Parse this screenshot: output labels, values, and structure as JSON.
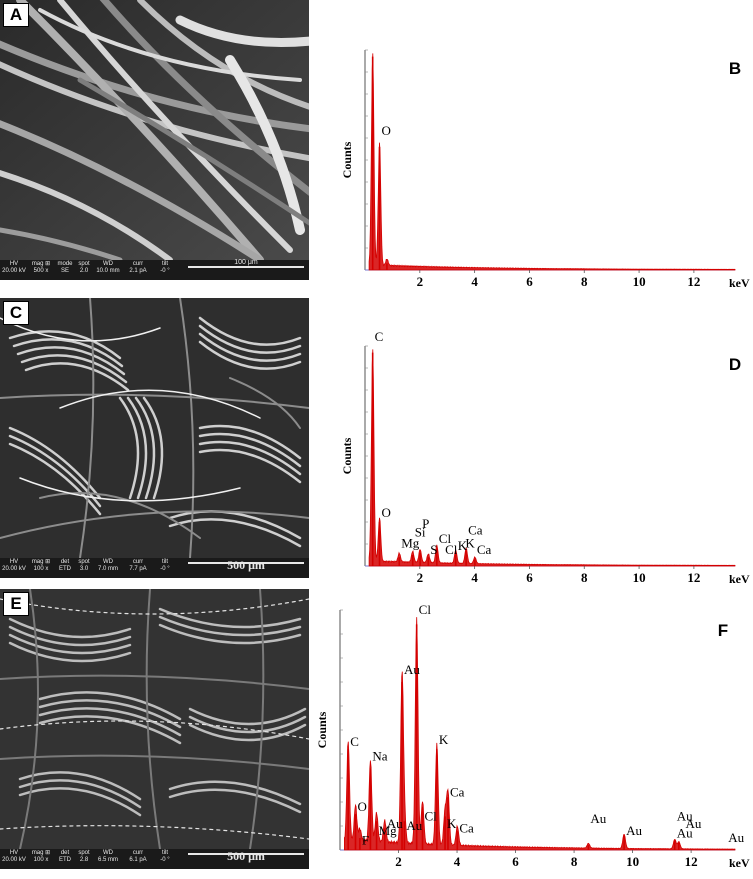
{
  "panels": {
    "A": {
      "label": "A"
    },
    "B": {
      "label": "B"
    },
    "C": {
      "label": "C"
    },
    "D": {
      "label": "D"
    },
    "E": {
      "label": "E"
    },
    "F": {
      "label": "F"
    }
  },
  "sem_bars": [
    {
      "id": "A",
      "scale": "100 μm",
      "cells": [
        [
          "HV",
          "20.00 kV"
        ],
        [
          "mag ⊞",
          "500 x"
        ],
        [
          "mode",
          "SE"
        ],
        [
          "spot",
          "2.0"
        ],
        [
          "WD",
          "10.0 mm"
        ],
        [
          "curr",
          "2.1 pA"
        ],
        [
          "tilt",
          "-0 °"
        ]
      ]
    },
    {
      "id": "C",
      "scale": "500 μm",
      "cells": [
        [
          "HV",
          "20.00 kV"
        ],
        [
          "mag ⊞",
          "100 x"
        ],
        [
          "det",
          "ETD"
        ],
        [
          "spot",
          "3.0"
        ],
        [
          "WD",
          "7.0 mm"
        ],
        [
          "curr",
          "7.7 pA"
        ],
        [
          "tilt",
          "-0 °"
        ]
      ]
    },
    {
      "id": "E",
      "scale": "500 μm",
      "cells": [
        [
          "HV",
          "20.00 kV"
        ],
        [
          "mag ⊞",
          "100 x"
        ],
        [
          "det",
          "ETD"
        ],
        [
          "spot",
          "2.8"
        ],
        [
          "WD",
          "6.5 mm"
        ],
        [
          "curr",
          "6.1 pA"
        ],
        [
          "tilt",
          "-0 °"
        ]
      ]
    }
  ],
  "chart_data": [
    {
      "panel": "B",
      "type": "line",
      "title": "",
      "xlabel": "keV",
      "ylabel": "Counts",
      "xlim": [
        0,
        13.5
      ],
      "ylim": [
        0,
        100
      ],
      "xticks": [
        2,
        4,
        6,
        8,
        10,
        12
      ],
      "peaks": [
        {
          "x": 0.28,
          "y": 97
        },
        {
          "x": 0.53,
          "y": 56
        },
        {
          "x": 0.8,
          "y": 3
        }
      ],
      "baseline": 1.5,
      "annotations": [
        {
          "text": "O",
          "x": 0.53,
          "y": 60
        }
      ],
      "color": "#d40000",
      "grid": false
    },
    {
      "panel": "D",
      "type": "line",
      "title": "",
      "xlabel": "keV",
      "ylabel": "Counts",
      "xlim": [
        0,
        13.5
      ],
      "ylim": [
        0,
        100
      ],
      "xticks": [
        2,
        4,
        6,
        8,
        10,
        12
      ],
      "peaks": [
        {
          "x": 0.28,
          "y": 97
        },
        {
          "x": 0.53,
          "y": 20
        },
        {
          "x": 1.25,
          "y": 4
        },
        {
          "x": 1.74,
          "y": 5
        },
        {
          "x": 2.01,
          "y": 6
        },
        {
          "x": 2.31,
          "y": 4
        },
        {
          "x": 2.62,
          "y": 8
        },
        {
          "x": 3.31,
          "y": 6
        },
        {
          "x": 3.69,
          "y": 7
        },
        {
          "x": 4.01,
          "y": 3
        }
      ],
      "baseline": 1.5,
      "annotations": [
        {
          "text": "C",
          "x": 0.28,
          "y": 101
        },
        {
          "text": "O",
          "x": 0.53,
          "y": 21
        },
        {
          "text": "Mg",
          "x": 1.25,
          "y": 7
        },
        {
          "text": "Si",
          "x": 1.74,
          "y": 12
        },
        {
          "text": "P",
          "x": 2.01,
          "y": 16
        },
        {
          "text": "S",
          "x": 2.31,
          "y": 4
        },
        {
          "text": "Cl",
          "x": 2.62,
          "y": 9
        },
        {
          "text": "Cl",
          "x": 2.85,
          "y": 4
        },
        {
          "text": "K",
          "x": 3.31,
          "y": 6
        },
        {
          "text": "K",
          "x": 3.59,
          "y": 7
        },
        {
          "text": "Ca",
          "x": 3.69,
          "y": 13
        },
        {
          "text": "Ca",
          "x": 4.01,
          "y": 4
        }
      ],
      "color": "#d40000",
      "grid": false
    },
    {
      "panel": "F",
      "type": "line",
      "title": "",
      "xlabel": "keV",
      "ylabel": "Counts",
      "xlim": [
        0,
        13.5
      ],
      "ylim": [
        0,
        100
      ],
      "xticks": [
        2,
        4,
        6,
        8,
        10,
        12
      ],
      "peaks": [
        {
          "x": 0.28,
          "y": 42
        },
        {
          "x": 0.53,
          "y": 15
        },
        {
          "x": 0.68,
          "y": 5
        },
        {
          "x": 1.04,
          "y": 34
        },
        {
          "x": 1.25,
          "y": 12
        },
        {
          "x": 1.53,
          "y": 9
        },
        {
          "x": 2.12,
          "y": 70
        },
        {
          "x": 2.2,
          "y": 12
        },
        {
          "x": 2.62,
          "y": 94
        },
        {
          "x": 2.82,
          "y": 18
        },
        {
          "x": 3.31,
          "y": 42
        },
        {
          "x": 3.59,
          "y": 14
        },
        {
          "x": 3.69,
          "y": 22
        },
        {
          "x": 4.01,
          "y": 8
        },
        {
          "x": 8.49,
          "y": 2
        },
        {
          "x": 9.71,
          "y": 6
        },
        {
          "x": 11.44,
          "y": 4
        },
        {
          "x": 11.58,
          "y": 3
        }
      ],
      "baseline": 3,
      "annotations": [
        {
          "text": "C",
          "x": 0.28,
          "y": 42
        },
        {
          "text": "O",
          "x": 0.53,
          "y": 15
        },
        {
          "text": "F",
          "x": 0.68,
          "y": 1
        },
        {
          "text": "Na",
          "x": 1.04,
          "y": 36
        },
        {
          "text": "Mg",
          "x": 1.25,
          "y": 5
        },
        {
          "text": "Au",
          "x": 1.53,
          "y": 8
        },
        {
          "text": "Au",
          "x": 2.12,
          "y": 72
        },
        {
          "text": "Au",
          "x": 2.2,
          "y": 7
        },
        {
          "text": "Cl",
          "x": 2.62,
          "y": 97
        },
        {
          "text": "Cl",
          "x": 2.82,
          "y": 11
        },
        {
          "text": "K",
          "x": 3.31,
          "y": 43
        },
        {
          "text": "K",
          "x": 3.59,
          "y": 8
        },
        {
          "text": "Ca",
          "x": 3.69,
          "y": 21
        },
        {
          "text": "Ca",
          "x": 4.01,
          "y": 6
        },
        {
          "text": "Au",
          "x": 8.49,
          "y": 10
        },
        {
          "text": "Au",
          "x": 9.71,
          "y": 5
        },
        {
          "text": "Au",
          "x": 11.44,
          "y": 11
        },
        {
          "text": "Au",
          "x": 11.74,
          "y": 8
        },
        {
          "text": "Au",
          "x": 11.44,
          "y": 4
        },
        {
          "text": "Au",
          "x": 13.2,
          "y": 2
        }
      ],
      "color": "#d40000",
      "grid": false
    }
  ]
}
